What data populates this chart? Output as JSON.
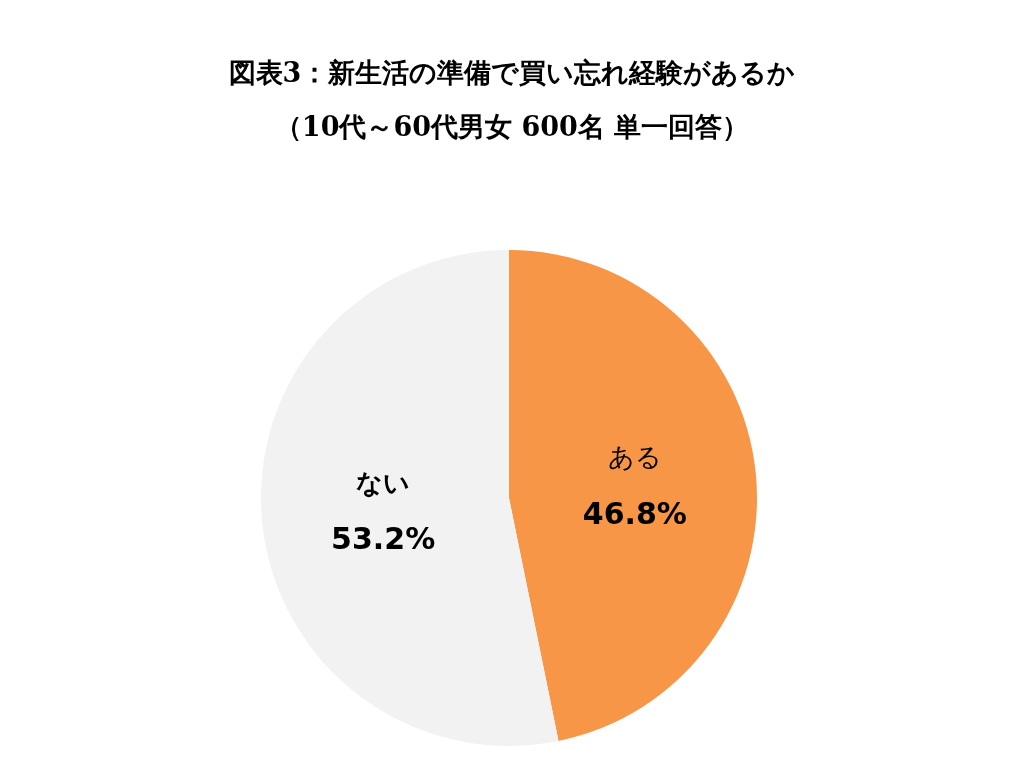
{
  "chart_data": {
    "type": "pie",
    "title": "図表3：新生活の準備で買い忘れ経験があるか",
    "subtitle": "（10代～60代男女 600名 単一回答）",
    "categories": [
      "ある",
      "ない"
    ],
    "values": [
      46.8,
      53.2
    ],
    "colors": [
      "#f79646",
      "#f2f2f2"
    ],
    "value_labels": [
      "46.8%",
      "53.2%"
    ]
  }
}
